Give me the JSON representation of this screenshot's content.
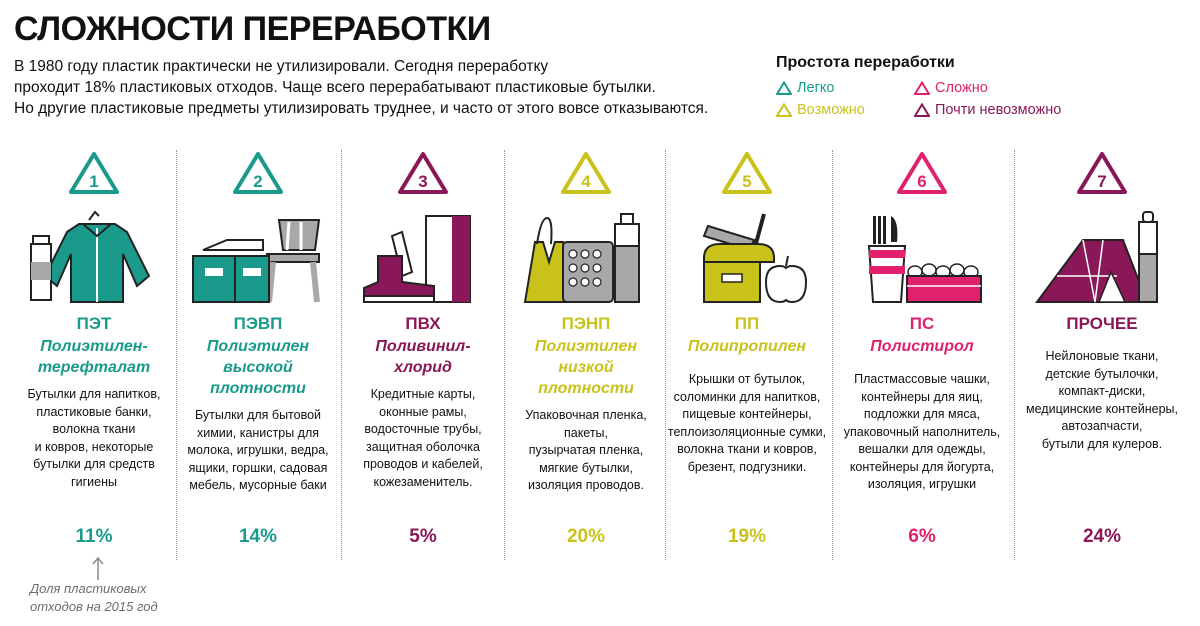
{
  "title": "СЛОЖНОСТИ ПЕРЕРАБОТКИ",
  "intro": [
    "В 1980 году пластик практически не утилизировали. Сегодня переработку",
    "проходит 18% пластиковых отходов. Чаще всего перерабатывают пластиковые бутылки.",
    "Но другие пластиковые предметы утилизировать труднее, и часто от этого вовсе отказываются."
  ],
  "legend": {
    "title": "Простота переработки",
    "items": [
      {
        "label": "Легко",
        "color": "#1a9a8a"
      },
      {
        "label": "Возможно",
        "color": "#c9c21a"
      },
      {
        "label": "Сложно",
        "color": "#e0226e"
      },
      {
        "label": "Почти невозможно",
        "color": "#8a1858"
      }
    ]
  },
  "colors": {
    "easy": "#1a9a8a",
    "possible": "#c9c21a",
    "hard": "#e0226e",
    "nearly_impossible": "#8a1858",
    "grey": "#a8a8a8"
  },
  "plastics": [
    {
      "number": "1",
      "abbr": "ПЭТ",
      "full": [
        "Полиэтилен-",
        "терефталат"
      ],
      "desc": [
        "Бутылки для напитков,",
        "пластиковые банки,",
        "волокна ткани",
        "и ковров, некоторые",
        "бутылки для средств",
        "гигиены"
      ],
      "percent": "11%",
      "icon": "jacket-bottle-icon",
      "color": "#1a9a8a"
    },
    {
      "number": "2",
      "abbr": "ПЭВП",
      "full": [
        "Полиэтилен",
        "высокой",
        "плотности"
      ],
      "desc": [
        "Бутылки для бытовой",
        "химии, канистры для",
        "молока, игрушки, ведра,",
        "ящики, горшки, садовая",
        "мебель, мусорные баки"
      ],
      "percent": "14%",
      "icon": "crate-chair-icon",
      "color": "#1a9a8a"
    },
    {
      "number": "3",
      "abbr": "ПВХ",
      "full": [
        "Поливинил-",
        "хлорид"
      ],
      "desc": [
        "Кредитные карты,",
        "оконные рамы,",
        "водосточные трубы,",
        "защитная оболочка",
        "проводов и кабелей,",
        "кожезаменитель."
      ],
      "percent": "5%",
      "icon": "boot-pipe-icon",
      "color": "#8a1858"
    },
    {
      "number": "4",
      "abbr": "ПЭНП",
      "full": [
        "Полиэтилен",
        "низкой",
        "плотности"
      ],
      "desc": [
        "Упаковочная пленка,",
        "пакеты,",
        "пузырчатая пленка,",
        "мягкие бутылки,",
        "изоляция проводов."
      ],
      "percent": "20%",
      "icon": "bag-bubblewrap-icon",
      "color": "#c9c21a"
    },
    {
      "number": "5",
      "abbr": "ПП",
      "full": [
        "Полипропилен"
      ],
      "desc": [
        "Крышки от бутылок,",
        "соломинки для напитков,",
        "пищевые контейнеры,",
        "теплоизоляционные сумки,",
        "волокна ткани и ковров,",
        "брезент, подгузники."
      ],
      "percent": "19%",
      "icon": "lunchbox-apple-icon",
      "color": "#c9c21a"
    },
    {
      "number": "6",
      "abbr": "ПС",
      "full": [
        "Полистирол"
      ],
      "desc": [
        "Пластмассовые чашки,",
        "контейнеры для яиц,",
        "подложки для мяса,",
        "упаковочный наполнитель,",
        "вешалки для одежды,",
        "контейнеры для йогурта,",
        "изоляция, игрушки"
      ],
      "percent": "6%",
      "icon": "cutlery-eggtray-icon",
      "color": "#e0226e"
    },
    {
      "number": "7",
      "abbr": "ПРОЧЕЕ",
      "full": [],
      "desc": [
        "Нейлоновые ткани,",
        "детские бутылочки,",
        "компакт-диски,",
        "медицинские контейнеры,",
        "автозапчасти,",
        "бутыли для кулеров."
      ],
      "percent": "24%",
      "icon": "tent-bottle-icon",
      "color": "#8a1858"
    }
  ],
  "footnote": [
    "Доля пластиковых",
    "отходов на 2015 год"
  ]
}
